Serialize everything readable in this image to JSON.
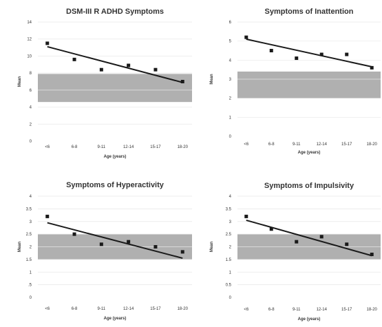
{
  "chart_data": [
    {
      "type": "scatter",
      "title": "DSM-III R ADHD Symptoms",
      "xlabel": "Age (years)",
      "ylabel": "Mean",
      "categories": [
        "<6",
        "6-8",
        "9-11",
        "12-14",
        "15-17",
        "18-20"
      ],
      "yticks": [
        "0",
        "2",
        "4",
        "6",
        "8",
        "10",
        "12",
        "14"
      ],
      "ylim": [
        0,
        14
      ],
      "values": [
        11.5,
        9.6,
        8.4,
        8.9,
        8.4,
        7.0
      ],
      "trend": [
        11.1,
        6.9
      ],
      "band": [
        4.6,
        7.9
      ],
      "grid": true,
      "colors": {
        "points": "#1a1a1a",
        "trend": "#1a1a1a",
        "band": "#b0b0b0",
        "grid": "#e6e6e6"
      }
    },
    {
      "type": "scatter",
      "title": "Symptoms of Inattention",
      "xlabel": "Age (years)",
      "ylabel": "Mean",
      "categories": [
        "<6",
        "6-8",
        "9-11",
        "12-14",
        "15-17",
        "18-20"
      ],
      "yticks": [
        "0",
        "1",
        "2",
        "3",
        "4",
        "5",
        "6"
      ],
      "ylim": [
        0,
        6
      ],
      "values": [
        5.2,
        4.5,
        4.1,
        4.3,
        4.3,
        3.6
      ],
      "trend": [
        5.1,
        3.65
      ],
      "band": [
        2.0,
        3.4
      ],
      "grid": true,
      "colors": {
        "points": "#1a1a1a",
        "trend": "#1a1a1a",
        "band": "#b0b0b0",
        "grid": "#e6e6e6"
      }
    },
    {
      "type": "scatter",
      "title": "Symptoms of Hyperactivity",
      "xlabel": "Age (years)",
      "ylabel": "Mean",
      "categories": [
        "<6",
        "6-8",
        "9-11",
        "12-14",
        "15-17",
        "18-20"
      ],
      "yticks": [
        "0",
        ".5",
        "1",
        "1.5",
        "2",
        "2.5",
        "3",
        "3.5",
        "4"
      ],
      "ylim": [
        0,
        4
      ],
      "values": [
        3.2,
        2.5,
        2.1,
        2.2,
        2.0,
        1.8
      ],
      "trend": [
        2.95,
        1.55
      ],
      "band": [
        1.5,
        2.5
      ],
      "grid": true,
      "colors": {
        "points": "#1a1a1a",
        "trend": "#1a1a1a",
        "band": "#b0b0b0",
        "grid": "#e6e6e6"
      }
    },
    {
      "type": "scatter",
      "title": "Symptoms of Impulsivity",
      "xlabel": "Age (years)",
      "ylabel": "Mean",
      "categories": [
        "<6",
        "6-8",
        "9-11",
        "12-14",
        "15-17",
        "18-20"
      ],
      "yticks": [
        "0",
        "0.5",
        "1",
        "1.5",
        "2",
        "2.5",
        "3",
        "3.5",
        "4"
      ],
      "ylim": [
        0,
        4
      ],
      "values": [
        3.2,
        2.7,
        2.2,
        2.4,
        2.1,
        1.7
      ],
      "trend": [
        3.05,
        1.65
      ],
      "band": [
        1.5,
        2.5
      ],
      "grid": true,
      "colors": {
        "points": "#1a1a1a",
        "trend": "#1a1a1a",
        "band": "#b0b0b0",
        "grid": "#e6e6e6"
      }
    }
  ]
}
